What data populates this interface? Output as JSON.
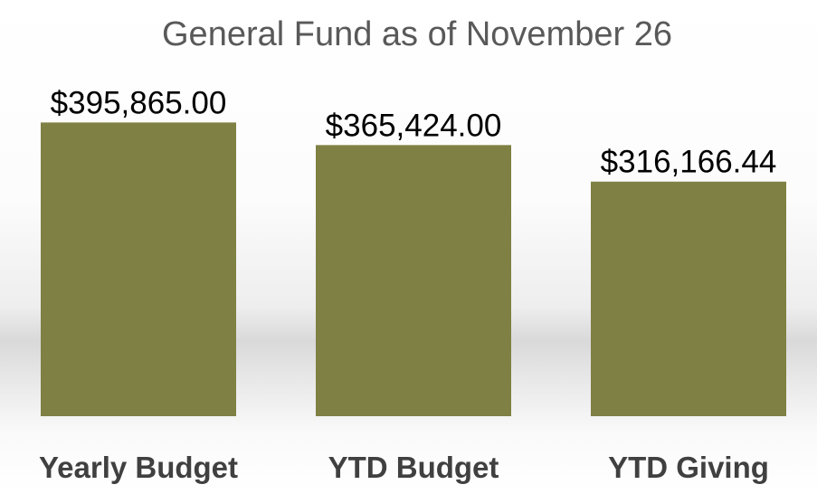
{
  "chart_data": {
    "type": "bar",
    "title": "General Fund as of November 26",
    "categories": [
      "Yearly Budget",
      "YTD Budget",
      "YTD Giving"
    ],
    "values": [
      395865.0,
      365424.0,
      316166.44
    ],
    "data_labels": [
      "$395,865.00",
      "$365,424.00",
      "$316,166.44"
    ],
    "bar_color": "#7f8043",
    "xlabel": "",
    "ylabel": "",
    "ylim": [
      0,
      400000
    ],
    "grid": false,
    "legend": "none"
  }
}
